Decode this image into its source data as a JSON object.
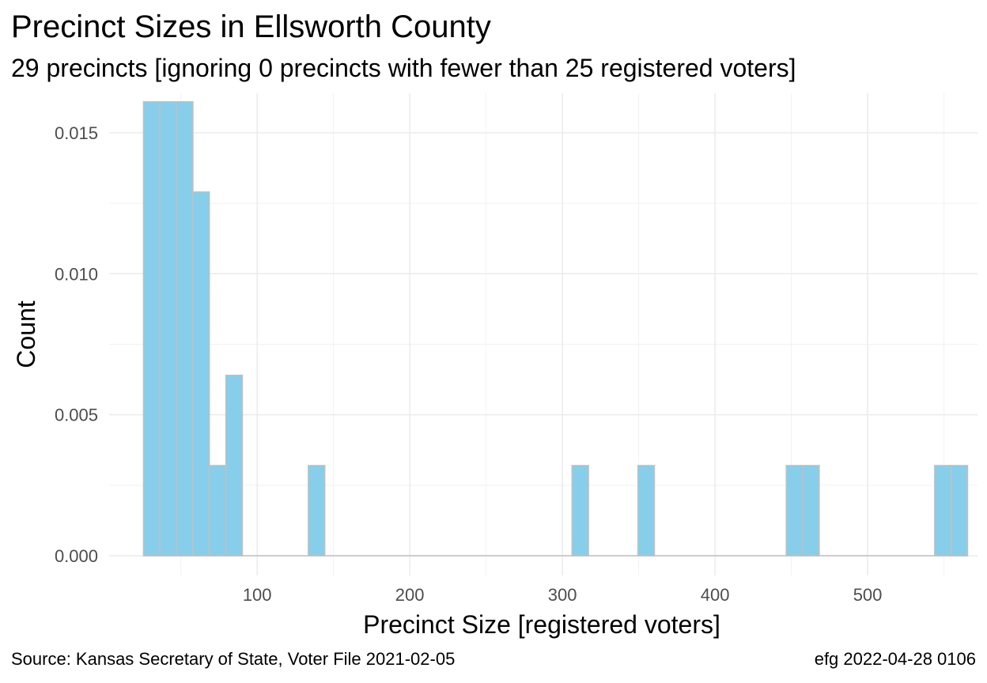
{
  "chart_data": {
    "type": "bar",
    "title": "Precinct Sizes in Ellsworth County",
    "subtitle": "29 precincts [ignoring 0 precincts with fewer than 25 registered voters]",
    "xlabel": "Precinct Size [registered voters]",
    "ylabel": "Count",
    "xlim": [
      3,
      572
    ],
    "ylim": [
      -0.0007,
      0.0164
    ],
    "x_ticks": [
      100,
      200,
      300,
      400,
      500
    ],
    "y_ticks": [
      0.0,
      0.005,
      0.01,
      0.015
    ],
    "y_tick_labels": [
      "0.000",
      "0.005",
      "0.010",
      "0.015"
    ],
    "grid": true,
    "bar_fill": "#87CEEB",
    "bar_outline": "#c0c0c0",
    "bins": [
      {
        "x0": 25.5,
        "x1": 36.3,
        "value": 0.0161
      },
      {
        "x0": 36.3,
        "x1": 47.1,
        "value": 0.0161
      },
      {
        "x0": 47.1,
        "x1": 57.9,
        "value": 0.0161
      },
      {
        "x0": 57.9,
        "x1": 68.7,
        "value": 0.0129
      },
      {
        "x0": 68.7,
        "x1": 79.5,
        "value": 0.0032
      },
      {
        "x0": 79.5,
        "x1": 90.3,
        "value": 0.0064
      },
      {
        "x0": 133.5,
        "x1": 144.3,
        "value": 0.0032
      },
      {
        "x0": 306.3,
        "x1": 317.1,
        "value": 0.0032
      },
      {
        "x0": 349.5,
        "x1": 360.3,
        "value": 0.0032
      },
      {
        "x0": 446.7,
        "x1": 457.5,
        "value": 0.0032
      },
      {
        "x0": 457.5,
        "x1": 468.3,
        "value": 0.0032
      },
      {
        "x0": 543.9,
        "x1": 554.7,
        "value": 0.0032
      },
      {
        "x0": 554.7,
        "x1": 565.5,
        "value": 0.0032
      }
    ],
    "baseline_range": [
      25.5,
      565.5
    ]
  },
  "caption": {
    "source": "Source:  Kansas Secretary of State, Voter File  2021-02-05",
    "credit": "efg 2022-04-28 0106"
  }
}
